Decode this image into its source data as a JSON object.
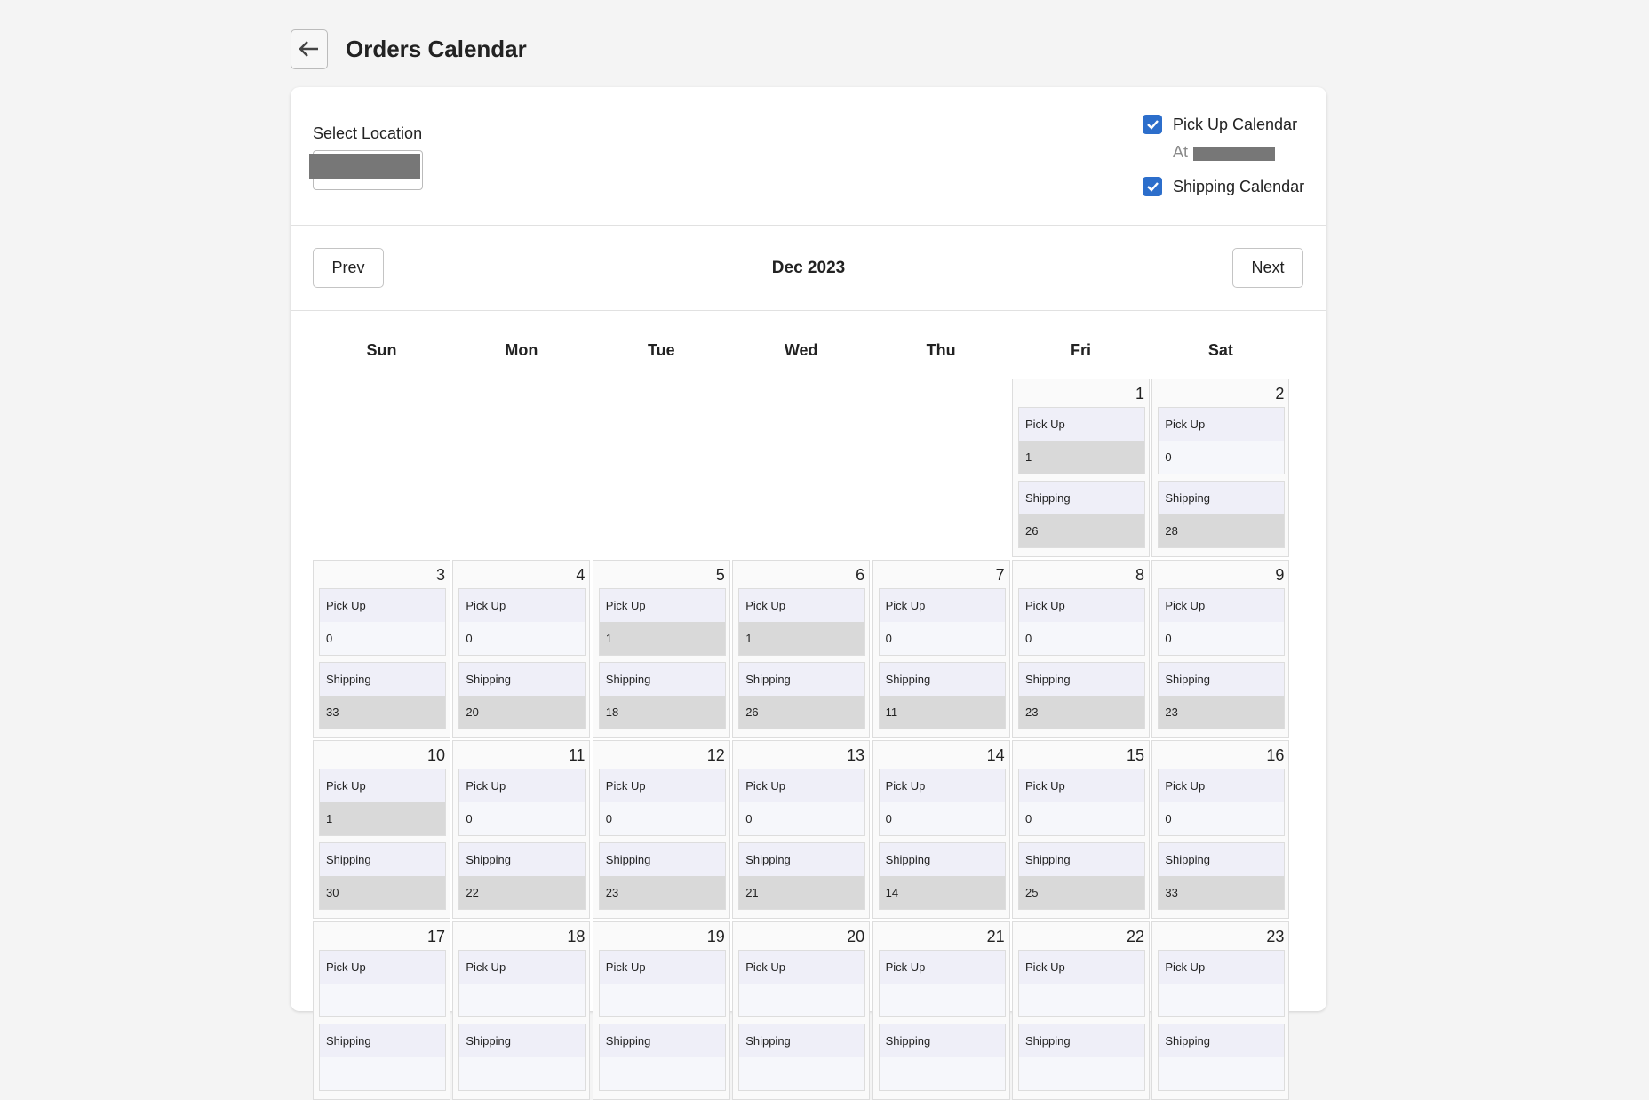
{
  "header": {
    "title": "Orders Calendar"
  },
  "location": {
    "label": "Select Location"
  },
  "options": {
    "pickup": "Pick Up Calendar",
    "pickup_note": "At",
    "shipping": "Shipping Calendar"
  },
  "nav": {
    "prev": "Prev",
    "month": "Dec 2023",
    "next": "Next"
  },
  "calendar": {
    "weekdays": [
      "Sun",
      "Mon",
      "Tue",
      "Wed",
      "Thu",
      "Fri",
      "Sat"
    ],
    "pickup_label": "Pick Up",
    "shipping_label": "Shipping",
    "weeks": [
      [
        null,
        null,
        null,
        null,
        null,
        {
          "day": 1,
          "pickup": 1,
          "shipping": 26
        },
        {
          "day": 2,
          "pickup": 0,
          "shipping": 28
        }
      ],
      [
        {
          "day": 3,
          "pickup": 0,
          "shipping": 33
        },
        {
          "day": 4,
          "pickup": 0,
          "shipping": 20
        },
        {
          "day": 5,
          "pickup": 1,
          "shipping": 18
        },
        {
          "day": 6,
          "pickup": 1,
          "shipping": 26
        },
        {
          "day": 7,
          "pickup": 0,
          "shipping": 11
        },
        {
          "day": 8,
          "pickup": 0,
          "shipping": 23
        },
        {
          "day": 9,
          "pickup": 0,
          "shipping": 23
        }
      ],
      [
        {
          "day": 10,
          "pickup": 1,
          "shipping": 30
        },
        {
          "day": 11,
          "pickup": 0,
          "shipping": 22
        },
        {
          "day": 12,
          "pickup": 0,
          "shipping": 23
        },
        {
          "day": 13,
          "pickup": 0,
          "shipping": 21
        },
        {
          "day": 14,
          "pickup": 0,
          "shipping": 14
        },
        {
          "day": 15,
          "pickup": 0,
          "shipping": 25
        },
        {
          "day": 16,
          "pickup": 0,
          "shipping": 33
        }
      ],
      [
        {
          "day": 17
        },
        {
          "day": 18
        },
        {
          "day": 19
        },
        {
          "day": 20
        },
        {
          "day": 21
        },
        {
          "day": 22
        },
        {
          "day": 23
        }
      ]
    ]
  }
}
